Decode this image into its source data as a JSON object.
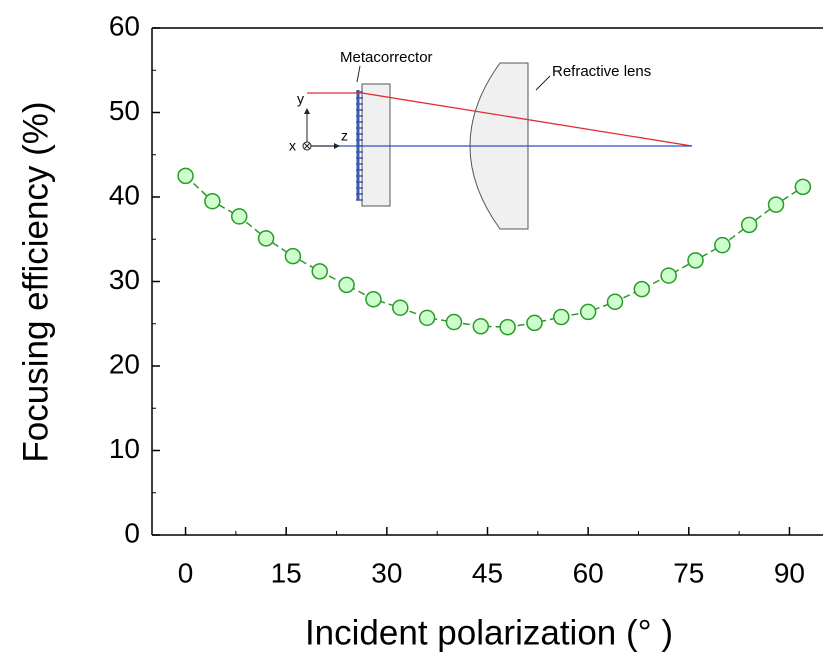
{
  "chart_data": {
    "type": "line",
    "x_label": "Incident polarization (° )",
    "y_label": "Focusing efficiency (%)",
    "xlim": [
      -5,
      95
    ],
    "ylim": [
      0,
      60
    ],
    "xticks": [
      0,
      15,
      30,
      45,
      60,
      75,
      90
    ],
    "yticks": [
      0,
      10,
      20,
      30,
      40,
      50,
      60
    ],
    "series": [
      {
        "color": "#2a9a2a",
        "fill": "#ccffcc",
        "x": [
          0,
          4,
          8,
          12,
          16,
          20,
          24,
          28,
          32,
          36,
          40,
          44,
          48,
          52,
          56,
          60,
          64,
          68,
          72,
          76,
          80,
          84,
          88,
          92
        ],
        "values": [
          42.5,
          39.5,
          37.7,
          35.1,
          33.0,
          31.2,
          29.6,
          27.9,
          26.9,
          25.7,
          25.2,
          24.7,
          24.6,
          25.1,
          25.8,
          26.4,
          27.6,
          29.1,
          30.7,
          32.5,
          34.3,
          36.7,
          39.1,
          41.2
        ]
      }
    ],
    "inset": {
      "labels": [
        "Metacorrector",
        "Refractive lens",
        "y",
        "z",
        "x"
      ]
    }
  }
}
